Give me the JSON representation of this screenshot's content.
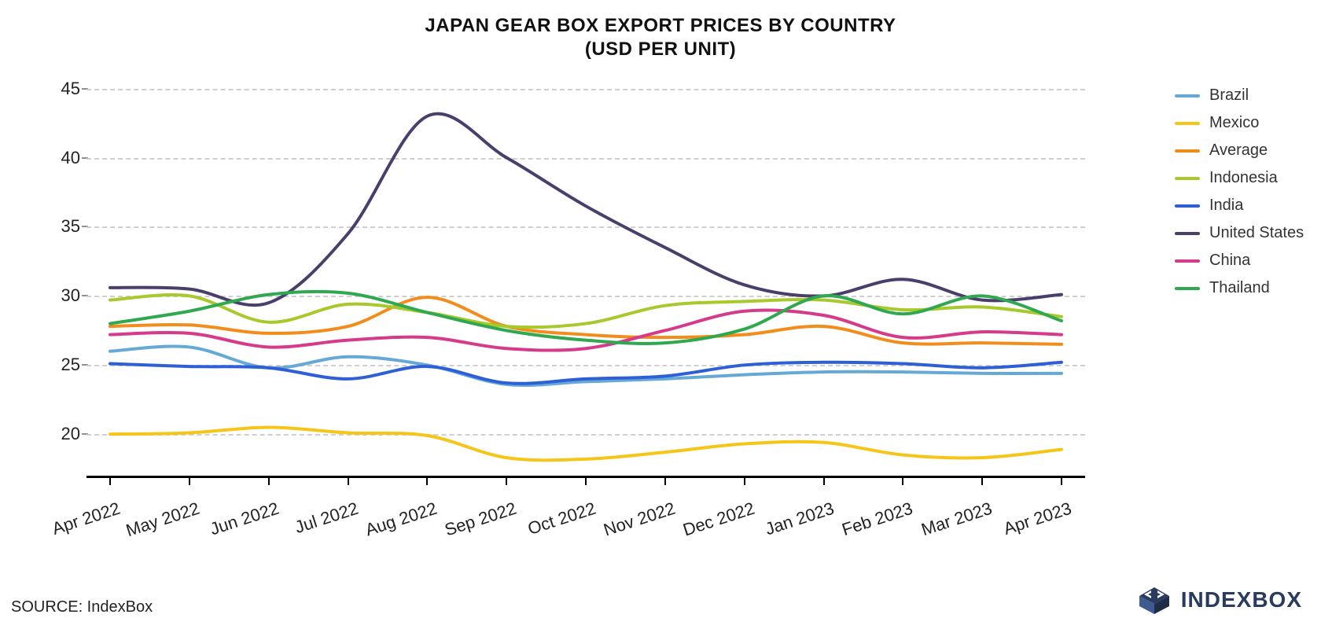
{
  "title_line1": "JAPAN GEAR BOX EXPORT PRICES BY COUNTRY",
  "title_line2": "(USD PER UNIT)",
  "source": "SOURCE: IndexBox",
  "logo_text": "INDEXBOX",
  "chart": {
    "type": "line",
    "background_color": "#ffffff",
    "grid_color": "#cfcfcf",
    "axis_color": "#000000",
    "tick_font_size": 22,
    "title_font_size": 24,
    "line_width": 4,
    "ylim": [
      17,
      46
    ],
    "yticks": [
      20,
      25,
      30,
      35,
      40,
      45
    ],
    "x_labels": [
      "Apr 2022",
      "May 2022",
      "Jun 2022",
      "Jul 2022",
      "Aug 2022",
      "Sep 2022",
      "Oct 2022",
      "Nov 2022",
      "Dec 2022",
      "Jan 2023",
      "Feb 2023",
      "Mar 2023",
      "Apr 2023"
    ],
    "x_label_rotation_deg": -18,
    "series": [
      {
        "name": "Brazil",
        "color": "#67a9d6",
        "values": [
          26.0,
          26.3,
          24.8,
          25.6,
          25.0,
          23.6,
          23.8,
          24.0,
          24.3,
          24.5,
          24.5,
          24.4,
          24.4
        ]
      },
      {
        "name": "Mexico",
        "color": "#f5c518",
        "values": [
          20.0,
          20.1,
          20.5,
          20.1,
          19.9,
          18.3,
          18.2,
          18.7,
          19.3,
          19.4,
          18.5,
          18.3,
          18.9
        ]
      },
      {
        "name": "Average",
        "color": "#f28c1b",
        "values": [
          27.8,
          27.9,
          27.3,
          27.8,
          29.9,
          27.8,
          27.2,
          27.0,
          27.2,
          27.8,
          26.6,
          26.6,
          26.5
        ]
      },
      {
        "name": "Indonesia",
        "color": "#a8c92c",
        "values": [
          29.7,
          30.0,
          28.1,
          29.4,
          28.8,
          27.8,
          28.0,
          29.3,
          29.6,
          29.7,
          29.0,
          29.2,
          28.5
        ]
      },
      {
        "name": "India",
        "color": "#2e5fd6",
        "values": [
          25.1,
          24.9,
          24.8,
          24.0,
          24.9,
          23.7,
          24.0,
          24.2,
          25.0,
          25.2,
          25.1,
          24.8,
          25.2
        ]
      },
      {
        "name": "United States",
        "color": "#4a3f6b",
        "values": [
          30.6,
          30.5,
          29.5,
          34.5,
          43.0,
          40.0,
          36.5,
          33.5,
          30.8,
          30.0,
          31.2,
          29.7,
          29.4
        ]
      },
      {
        "name": "China",
        "color": "#d63a8a",
        "values": [
          27.2,
          27.3,
          26.3,
          26.8,
          27.0,
          26.2,
          26.2,
          27.5,
          28.9,
          28.6,
          27.0,
          27.4,
          27.2
        ]
      },
      {
        "name": "Thailand",
        "color": "#2fa84f",
        "values": [
          28.0,
          28.9,
          30.1,
          30.2,
          28.8,
          27.5,
          26.8,
          26.6,
          27.6,
          30.0,
          28.7,
          30.0,
          28.2
        ]
      }
    ],
    "series_us_end": 30.1
  }
}
